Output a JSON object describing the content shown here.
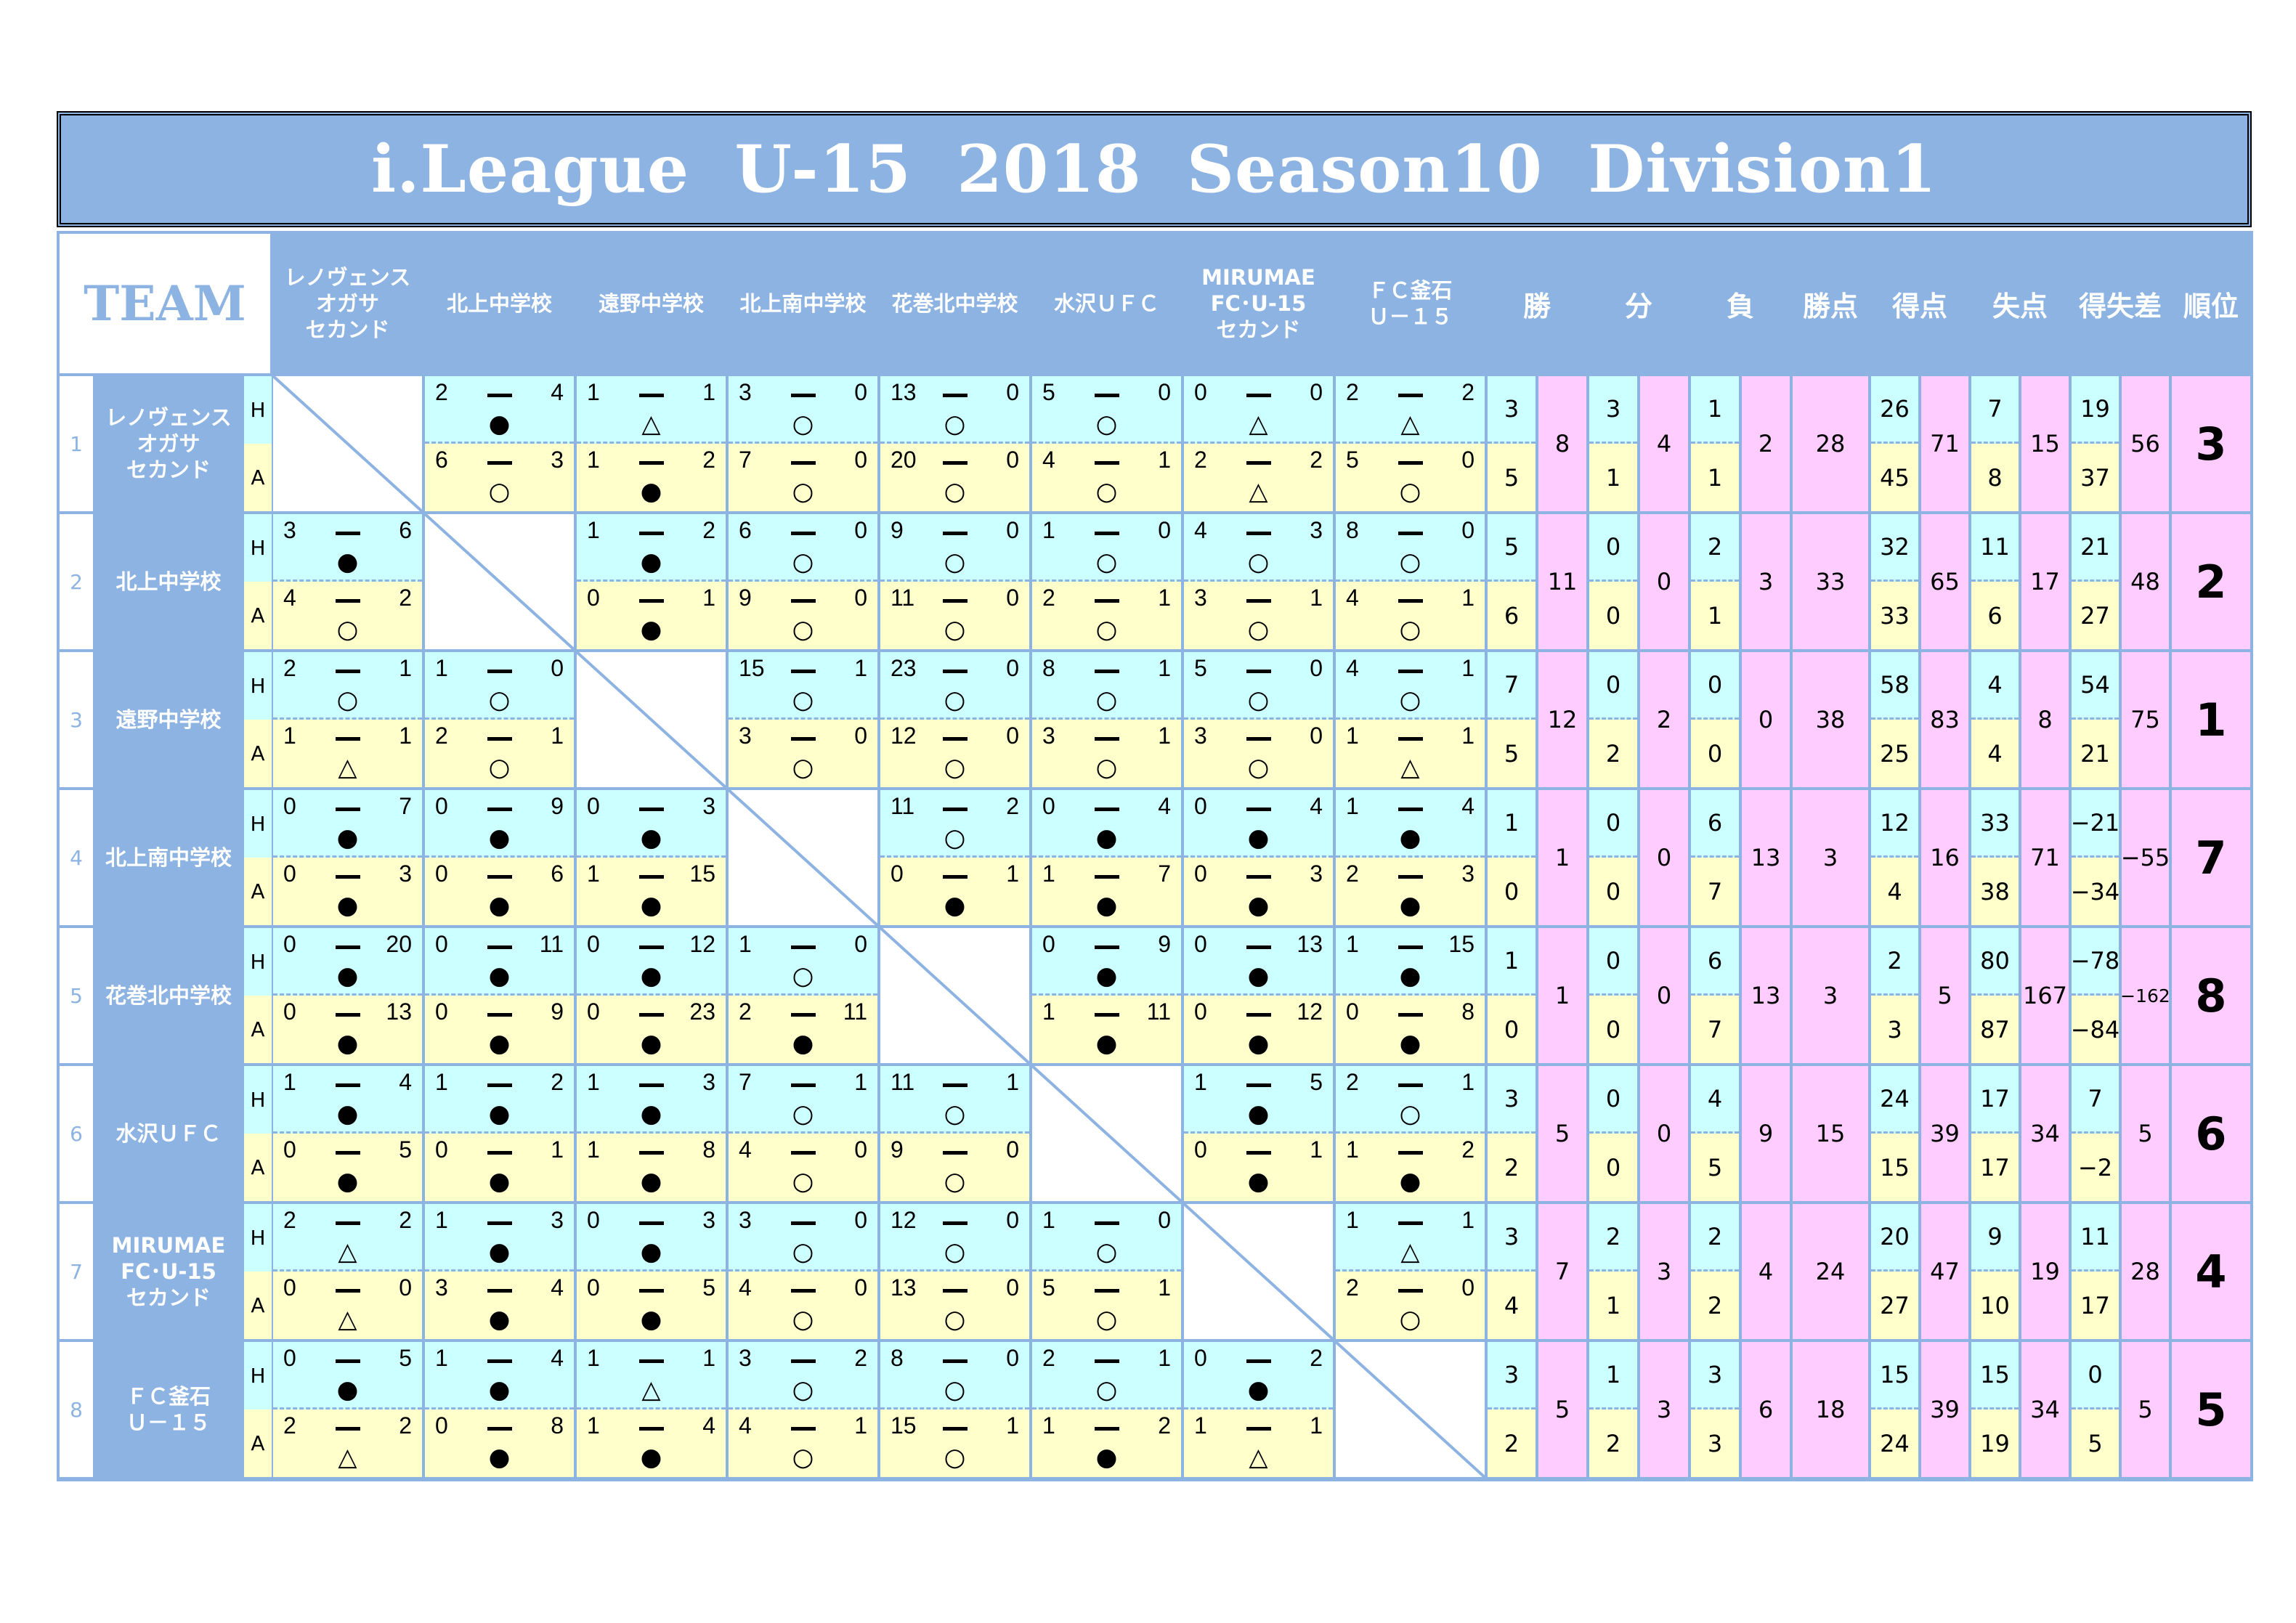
{
  "title": "i.League  U-15  2018  Season10  Division1",
  "header": {
    "team": "TEAM",
    "home_label": "H",
    "away_label": "A",
    "opponents": [
      "レノヴェンス\nオガサ\nセカンド",
      "北上中学校",
      "遠野中学校",
      "北上南中学校",
      "花巻北中学校",
      "水沢ＵＦＣ",
      "MIRUMAE\nFC･U-15\nセカンド",
      "ＦＣ釜石\nＵ－１５"
    ],
    "stats": [
      "勝",
      "分",
      "負",
      "勝点",
      "得点",
      "失点",
      "得失差",
      "順位"
    ]
  },
  "colors": {
    "header": "#8db3e2",
    "home": "#ccffff",
    "away": "#ffffcc",
    "totals": "#ffccff"
  },
  "result_symbols": {
    "win": "○",
    "loss": "●",
    "draw": "△"
  },
  "teams": [
    {
      "no": "1",
      "name": "レノヴェンス\nオガサ\nセカンド",
      "matches": [
        null,
        {
          "h": [
            "2",
            "4",
            "●"
          ],
          "a": [
            "6",
            "3",
            "○"
          ]
        },
        {
          "h": [
            "1",
            "1",
            "△"
          ],
          "a": [
            "1",
            "2",
            "●"
          ]
        },
        {
          "h": [
            "3",
            "0",
            "○"
          ],
          "a": [
            "7",
            "0",
            "○"
          ]
        },
        {
          "h": [
            "13",
            "0",
            "○"
          ],
          "a": [
            "20",
            "0",
            "○"
          ]
        },
        {
          "h": [
            "5",
            "0",
            "○"
          ],
          "a": [
            "4",
            "1",
            "○"
          ]
        },
        {
          "h": [
            "0",
            "0",
            "△"
          ],
          "a": [
            "2",
            "2",
            "△"
          ]
        },
        {
          "h": [
            "2",
            "2",
            "△"
          ],
          "a": [
            "5",
            "0",
            "○"
          ]
        }
      ],
      "stats": {
        "win": [
          "3",
          "5",
          "8"
        ],
        "draw": [
          "3",
          "1",
          "4"
        ],
        "loss": [
          "1",
          "1",
          "2"
        ],
        "points": "28",
        "gf": [
          "26",
          "45",
          "71"
        ],
        "ga": [
          "7",
          "8",
          "15"
        ],
        "gd": [
          "19",
          "37",
          "56"
        ],
        "rank": "3"
      }
    },
    {
      "no": "2",
      "name": "北上中学校",
      "matches": [
        {
          "h": [
            "3",
            "6",
            "●"
          ],
          "a": [
            "4",
            "2",
            "○"
          ]
        },
        null,
        {
          "h": [
            "1",
            "2",
            "●"
          ],
          "a": [
            "0",
            "1",
            "●"
          ]
        },
        {
          "h": [
            "6",
            "0",
            "○"
          ],
          "a": [
            "9",
            "0",
            "○"
          ]
        },
        {
          "h": [
            "9",
            "0",
            "○"
          ],
          "a": [
            "11",
            "0",
            "○"
          ]
        },
        {
          "h": [
            "1",
            "0",
            "○"
          ],
          "a": [
            "2",
            "1",
            "○"
          ]
        },
        {
          "h": [
            "4",
            "3",
            "○"
          ],
          "a": [
            "3",
            "1",
            "○"
          ]
        },
        {
          "h": [
            "8",
            "0",
            "○"
          ],
          "a": [
            "4",
            "1",
            "○"
          ]
        }
      ],
      "stats": {
        "win": [
          "5",
          "6",
          "11"
        ],
        "draw": [
          "0",
          "0",
          "0"
        ],
        "loss": [
          "2",
          "1",
          "3"
        ],
        "points": "33",
        "gf": [
          "32",
          "33",
          "65"
        ],
        "ga": [
          "11",
          "6",
          "17"
        ],
        "gd": [
          "21",
          "27",
          "48"
        ],
        "rank": "2"
      }
    },
    {
      "no": "3",
      "name": "遠野中学校",
      "matches": [
        {
          "h": [
            "2",
            "1",
            "○"
          ],
          "a": [
            "1",
            "1",
            "△"
          ]
        },
        {
          "h": [
            "1",
            "0",
            "○"
          ],
          "a": [
            "2",
            "1",
            "○"
          ]
        },
        null,
        {
          "h": [
            "15",
            "1",
            "○"
          ],
          "a": [
            "3",
            "0",
            "○"
          ]
        },
        {
          "h": [
            "23",
            "0",
            "○"
          ],
          "a": [
            "12",
            "0",
            "○"
          ]
        },
        {
          "h": [
            "8",
            "1",
            "○"
          ],
          "a": [
            "3",
            "1",
            "○"
          ]
        },
        {
          "h": [
            "5",
            "0",
            "○"
          ],
          "a": [
            "3",
            "0",
            "○"
          ]
        },
        {
          "h": [
            "4",
            "1",
            "○"
          ],
          "a": [
            "1",
            "1",
            "△"
          ]
        }
      ],
      "stats": {
        "win": [
          "7",
          "5",
          "12"
        ],
        "draw": [
          "0",
          "2",
          "2"
        ],
        "loss": [
          "0",
          "0",
          "0"
        ],
        "points": "38",
        "gf": [
          "58",
          "25",
          "83"
        ],
        "ga": [
          "4",
          "4",
          "8"
        ],
        "gd": [
          "54",
          "21",
          "75"
        ],
        "rank": "1"
      }
    },
    {
      "no": "4",
      "name": "北上南中学校",
      "matches": [
        {
          "h": [
            "0",
            "7",
            "●"
          ],
          "a": [
            "0",
            "3",
            "●"
          ]
        },
        {
          "h": [
            "0",
            "9",
            "●"
          ],
          "a": [
            "0",
            "6",
            "●"
          ]
        },
        {
          "h": [
            "0",
            "3",
            "●"
          ],
          "a": [
            "1",
            "15",
            "●"
          ]
        },
        null,
        {
          "h": [
            "11",
            "2",
            "○"
          ],
          "a": [
            "0",
            "1",
            "●"
          ]
        },
        {
          "h": [
            "0",
            "4",
            "●"
          ],
          "a": [
            "1",
            "7",
            "●"
          ]
        },
        {
          "h": [
            "0",
            "4",
            "●"
          ],
          "a": [
            "0",
            "3",
            "●"
          ]
        },
        {
          "h": [
            "1",
            "4",
            "●"
          ],
          "a": [
            "2",
            "3",
            "●"
          ]
        }
      ],
      "stats": {
        "win": [
          "1",
          "0",
          "1"
        ],
        "draw": [
          "0",
          "0",
          "0"
        ],
        "loss": [
          "6",
          "7",
          "13"
        ],
        "points": "3",
        "gf": [
          "12",
          "4",
          "16"
        ],
        "ga": [
          "33",
          "38",
          "71"
        ],
        "gd": [
          "−21",
          "−34",
          "−55"
        ],
        "rank": "7"
      }
    },
    {
      "no": "5",
      "name": "花巻北中学校",
      "matches": [
        {
          "h": [
            "0",
            "20",
            "●"
          ],
          "a": [
            "0",
            "13",
            "●"
          ]
        },
        {
          "h": [
            "0",
            "11",
            "●"
          ],
          "a": [
            "0",
            "9",
            "●"
          ]
        },
        {
          "h": [
            "0",
            "12",
            "●"
          ],
          "a": [
            "0",
            "23",
            "●"
          ]
        },
        {
          "h": [
            "1",
            "0",
            "○"
          ],
          "a": [
            "2",
            "11",
            "●"
          ]
        },
        null,
        {
          "h": [
            "0",
            "9",
            "●"
          ],
          "a": [
            "1",
            "11",
            "●"
          ]
        },
        {
          "h": [
            "0",
            "13",
            "●"
          ],
          "a": [
            "0",
            "12",
            "●"
          ]
        },
        {
          "h": [
            "1",
            "15",
            "●"
          ],
          "a": [
            "0",
            "8",
            "●"
          ]
        }
      ],
      "stats": {
        "win": [
          "1",
          "0",
          "1"
        ],
        "draw": [
          "0",
          "0",
          "0"
        ],
        "loss": [
          "6",
          "7",
          "13"
        ],
        "points": "3",
        "gf": [
          "2",
          "3",
          "5"
        ],
        "ga": [
          "80",
          "87",
          "167"
        ],
        "gd": [
          "−78",
          "−84",
          "−162"
        ],
        "rank": "8"
      }
    },
    {
      "no": "6",
      "name": "水沢ＵＦＣ",
      "matches": [
        {
          "h": [
            "1",
            "4",
            "●"
          ],
          "a": [
            "0",
            "5",
            "●"
          ]
        },
        {
          "h": [
            "1",
            "2",
            "●"
          ],
          "a": [
            "0",
            "1",
            "●"
          ]
        },
        {
          "h": [
            "1",
            "3",
            "●"
          ],
          "a": [
            "1",
            "8",
            "●"
          ]
        },
        {
          "h": [
            "7",
            "1",
            "○"
          ],
          "a": [
            "4",
            "0",
            "○"
          ]
        },
        {
          "h": [
            "11",
            "1",
            "○"
          ],
          "a": [
            "9",
            "0",
            "○"
          ]
        },
        null,
        {
          "h": [
            "1",
            "5",
            "●"
          ],
          "a": [
            "0",
            "1",
            "●"
          ]
        },
        {
          "h": [
            "2",
            "1",
            "○"
          ],
          "a": [
            "1",
            "2",
            "●"
          ]
        }
      ],
      "stats": {
        "win": [
          "3",
          "2",
          "5"
        ],
        "draw": [
          "0",
          "0",
          "0"
        ],
        "loss": [
          "4",
          "5",
          "9"
        ],
        "points": "15",
        "gf": [
          "24",
          "15",
          "39"
        ],
        "ga": [
          "17",
          "17",
          "34"
        ],
        "gd": [
          "7",
          "−2",
          "5"
        ],
        "rank": "6"
      }
    },
    {
      "no": "7",
      "name": "MIRUMAE\nFC･U-15\nセカンド",
      "matches": [
        {
          "h": [
            "2",
            "2",
            "△"
          ],
          "a": [
            "0",
            "0",
            "△"
          ]
        },
        {
          "h": [
            "1",
            "3",
            "●"
          ],
          "a": [
            "3",
            "4",
            "●"
          ]
        },
        {
          "h": [
            "0",
            "3",
            "●"
          ],
          "a": [
            "0",
            "5",
            "●"
          ]
        },
        {
          "h": [
            "3",
            "0",
            "○"
          ],
          "a": [
            "4",
            "0",
            "○"
          ]
        },
        {
          "h": [
            "12",
            "0",
            "○"
          ],
          "a": [
            "13",
            "0",
            "○"
          ]
        },
        {
          "h": [
            "1",
            "0",
            "○"
          ],
          "a": [
            "5",
            "1",
            "○"
          ]
        },
        null,
        {
          "h": [
            "1",
            "1",
            "△"
          ],
          "a": [
            "2",
            "0",
            "○"
          ]
        }
      ],
      "stats": {
        "win": [
          "3",
          "4",
          "7"
        ],
        "draw": [
          "2",
          "1",
          "3"
        ],
        "loss": [
          "2",
          "2",
          "4"
        ],
        "points": "24",
        "gf": [
          "20",
          "27",
          "47"
        ],
        "ga": [
          "9",
          "10",
          "19"
        ],
        "gd": [
          "11",
          "17",
          "28"
        ],
        "rank": "4"
      }
    },
    {
      "no": "8",
      "name": "ＦＣ釜石\nＵ－１５",
      "matches": [
        {
          "h": [
            "0",
            "5",
            "●"
          ],
          "a": [
            "2",
            "2",
            "△"
          ]
        },
        {
          "h": [
            "1",
            "4",
            "●"
          ],
          "a": [
            "0",
            "8",
            "●"
          ]
        },
        {
          "h": [
            "1",
            "1",
            "△"
          ],
          "a": [
            "1",
            "4",
            "●"
          ]
        },
        {
          "h": [
            "3",
            "2",
            "○"
          ],
          "a": [
            "4",
            "1",
            "○"
          ]
        },
        {
          "h": [
            "8",
            "0",
            "○"
          ],
          "a": [
            "15",
            "1",
            "○"
          ]
        },
        {
          "h": [
            "2",
            "1",
            "○"
          ],
          "a": [
            "1",
            "2",
            "●"
          ]
        },
        {
          "h": [
            "0",
            "2",
            "●"
          ],
          "a": [
            "1",
            "1",
            "△"
          ]
        },
        null
      ],
      "stats": {
        "win": [
          "3",
          "2",
          "5"
        ],
        "draw": [
          "1",
          "2",
          "3"
        ],
        "loss": [
          "3",
          "3",
          "6"
        ],
        "points": "18",
        "gf": [
          "15",
          "24",
          "39"
        ],
        "ga": [
          "15",
          "19",
          "34"
        ],
        "gd": [
          "0",
          "5",
          "5"
        ],
        "rank": "5"
      }
    }
  ]
}
